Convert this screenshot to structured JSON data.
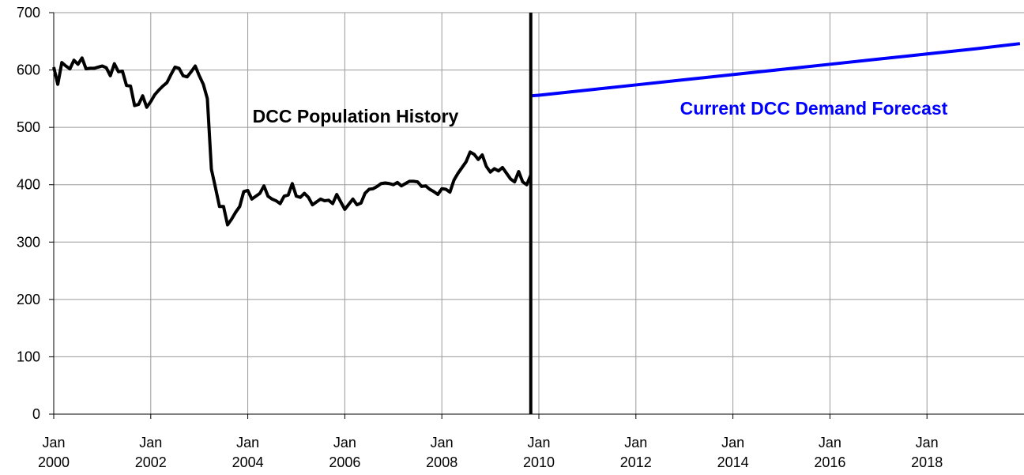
{
  "chart_data": {
    "type": "line",
    "xlim": [
      "2000-01",
      "2020-01"
    ],
    "xticks": [
      {
        "value": "2000-01",
        "label": "Jan 2000"
      },
      {
        "value": "2002-01",
        "label": "Jan 2002"
      },
      {
        "value": "2004-01",
        "label": "Jan 2004"
      },
      {
        "value": "2006-01",
        "label": "Jan 2006"
      },
      {
        "value": "2008-01",
        "label": "Jan 2008"
      },
      {
        "value": "2010-01",
        "label": "Jan 2010"
      },
      {
        "value": "2012-01",
        "label": "Jan 2012"
      },
      {
        "value": "2014-01",
        "label": "Jan 2014"
      },
      {
        "value": "2016-01",
        "label": "Jan 2016"
      },
      {
        "value": "2018-01",
        "label": "Jan 2018"
      }
    ],
    "ylim": [
      0,
      700
    ],
    "yticks": [
      0,
      100,
      200,
      300,
      400,
      500,
      600,
      700
    ],
    "grid": true,
    "divider_x": "2009-11",
    "series": [
      {
        "name": "DCC Population History",
        "color": "#000000",
        "x": [
          "2000-01",
          "2000-02",
          "2000-03",
          "2000-04",
          "2000-05",
          "2000-06",
          "2000-07",
          "2000-08",
          "2000-09",
          "2000-10",
          "2000-11",
          "2000-12",
          "2001-01",
          "2001-02",
          "2001-03",
          "2001-04",
          "2001-05",
          "2001-06",
          "2001-07",
          "2001-08",
          "2001-09",
          "2001-10",
          "2001-11",
          "2001-12",
          "2002-01",
          "2002-02",
          "2002-03",
          "2002-04",
          "2002-05",
          "2002-06",
          "2002-07",
          "2002-08",
          "2002-09",
          "2002-10",
          "2002-11",
          "2002-12",
          "2003-01",
          "2003-02",
          "2003-03",
          "2003-04",
          "2003-05",
          "2003-06",
          "2003-07",
          "2003-08",
          "2003-09",
          "2003-10",
          "2003-11",
          "2003-12",
          "2004-01",
          "2004-02",
          "2004-03",
          "2004-04",
          "2004-05",
          "2004-06",
          "2004-07",
          "2004-08",
          "2004-09",
          "2004-10",
          "2004-11",
          "2004-12",
          "2005-01",
          "2005-02",
          "2005-03",
          "2005-04",
          "2005-05",
          "2005-06",
          "2005-07",
          "2005-08",
          "2005-09",
          "2005-10",
          "2005-11",
          "2005-12",
          "2006-01",
          "2006-02",
          "2006-03",
          "2006-04",
          "2006-05",
          "2006-06",
          "2006-07",
          "2006-08",
          "2006-09",
          "2006-10",
          "2006-11",
          "2006-12",
          "2007-01",
          "2007-02",
          "2007-03",
          "2007-04",
          "2007-05",
          "2007-06",
          "2007-07",
          "2007-08",
          "2007-09",
          "2007-10",
          "2007-11",
          "2007-12",
          "2008-01",
          "2008-02",
          "2008-03",
          "2008-04",
          "2008-05",
          "2008-06",
          "2008-07",
          "2008-08",
          "2008-09",
          "2008-10",
          "2008-11",
          "2008-12",
          "2009-01",
          "2009-02",
          "2009-03",
          "2009-04",
          "2009-05",
          "2009-06",
          "2009-07",
          "2009-08",
          "2009-09",
          "2009-10",
          "2009-11"
        ],
        "values": [
          605,
          575,
          613,
          607,
          602,
          617,
          610,
          621,
          602,
          603,
          603,
          605,
          607,
          604,
          590,
          611,
          597,
          598,
          573,
          572,
          538,
          540,
          555,
          535,
          545,
          557,
          565,
          572,
          578,
          592,
          605,
          603,
          590,
          588,
          597,
          607,
          590,
          575,
          550,
          427,
          395,
          362,
          362,
          330,
          340,
          352,
          362,
          388,
          390,
          375,
          380,
          385,
          398,
          380,
          375,
          372,
          367,
          380,
          382,
          402,
          380,
          378,
          385,
          378,
          365,
          370,
          375,
          372,
          373,
          367,
          383,
          370,
          357,
          366,
          375,
          365,
          368,
          385,
          392,
          393,
          397,
          402,
          403,
          402,
          400,
          404,
          398,
          402,
          406,
          406,
          405,
          397,
          398,
          392,
          388,
          383,
          393,
          392,
          387,
          408,
          420,
          430,
          440,
          457,
          453,
          444,
          452,
          432,
          422,
          428,
          424,
          430,
          420,
          410,
          405,
          423,
          405,
          400,
          417
        ]
      },
      {
        "name": "Current DCC Demand Forecast",
        "color": "#0000ff",
        "x": [
          "2009-11",
          "2010-01",
          "2011-01",
          "2012-01",
          "2013-01",
          "2014-01",
          "2015-01",
          "2016-01",
          "2017-01",
          "2018-01",
          "2019-01",
          "2019-12"
        ],
        "values": [
          555,
          556,
          565,
          574,
          583,
          592,
          601,
          610,
          619,
          628,
          637,
          646
        ]
      }
    ]
  }
}
